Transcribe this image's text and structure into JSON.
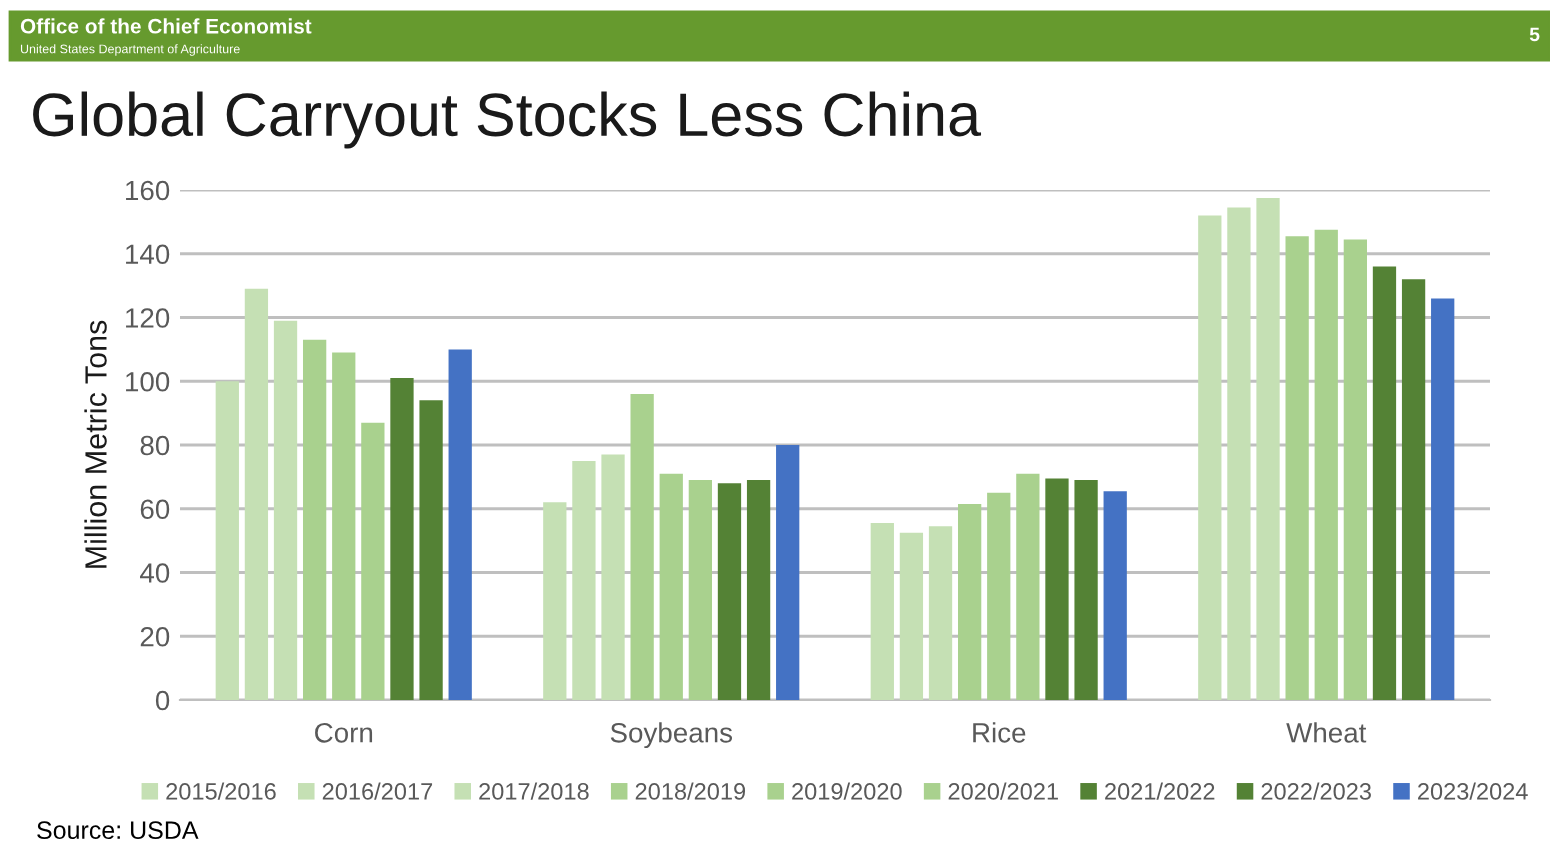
{
  "chart_data": {
    "type": "bar",
    "title": "Global Carryout Stocks Less China",
    "ylabel": "Million Metric Tons",
    "annotations": [
      "Office of the Chief Economist",
      "United States Department of Agriculture",
      "5",
      "Source: USDA"
    ],
    "categories": [
      "Corn",
      "Soybeans",
      "Rice",
      "Wheat"
    ],
    "series": [
      {
        "name": "2015/2016",
        "color": "#c5e0b4",
        "values": [
          100,
          62,
          55.5,
          152
        ]
      },
      {
        "name": "2016/2017",
        "color": "#c5e0b4",
        "values": [
          129,
          75,
          52.5,
          154.5
        ]
      },
      {
        "name": "2017/2018",
        "color": "#c5e0b4",
        "values": [
          119,
          77,
          54.5,
          157.5
        ]
      },
      {
        "name": "2018/2019",
        "color": "#a9d18e",
        "values": [
          113,
          96,
          61.5,
          145.5
        ]
      },
      {
        "name": "2019/2020",
        "color": "#a9d18e",
        "values": [
          109,
          71,
          65,
          147.5
        ]
      },
      {
        "name": "2020/2021",
        "color": "#a9d18e",
        "values": [
          87,
          69,
          71,
          144.5
        ]
      },
      {
        "name": "2021/2022",
        "color": "#548235",
        "values": [
          101,
          68,
          69.5,
          136
        ]
      },
      {
        "name": "2022/2023",
        "color": "#548235",
        "values": [
          94,
          69,
          69,
          132
        ]
      },
      {
        "name": "2023/2024",
        "color": "#4472c4",
        "values": [
          110,
          80,
          65.5,
          126
        ]
      }
    ],
    "ylim": [
      0,
      160
    ],
    "yticks": [
      0,
      20,
      40,
      60,
      80,
      100,
      120,
      140,
      160
    ],
    "grid": "y",
    "legend": "bottom"
  }
}
